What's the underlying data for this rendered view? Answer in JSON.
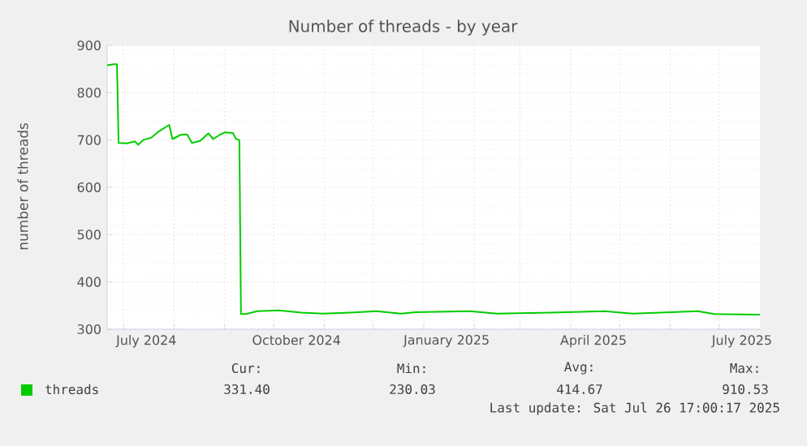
{
  "chart_data": {
    "type": "line",
    "title": "Number of threads - by year",
    "ylabel": "number of threads",
    "xlim": [
      "2024-06-21",
      "2025-07-26"
    ],
    "ylim": [
      300,
      900
    ],
    "yticks": [
      300,
      400,
      500,
      600,
      700,
      800,
      900
    ],
    "xticks": [
      {
        "value": "2024-07-01",
        "label": null
      },
      {
        "value": "2024-08-01",
        "label": null
      },
      {
        "value": "2024-09-01",
        "label": null
      },
      {
        "value": "2024-10-01",
        "label": null
      },
      {
        "value": "2024-11-01",
        "label": null
      },
      {
        "value": "2024-12-01",
        "label": null
      },
      {
        "value": "2025-01-01",
        "label": null
      },
      {
        "value": "2025-02-01",
        "label": null
      },
      {
        "value": "2025-03-01",
        "label": null
      },
      {
        "value": "2025-04-01",
        "label": null
      },
      {
        "value": "2025-05-01",
        "label": null
      },
      {
        "value": "2025-06-01",
        "label": null
      },
      {
        "value": "2025-07-01",
        "label": null
      },
      {
        "value": "2024-07-15",
        "label": "July 2024"
      },
      {
        "value": "2024-10-15",
        "label": "October 2024"
      },
      {
        "value": "2025-01-15",
        "label": "January 2025"
      },
      {
        "value": "2025-04-15",
        "label": "April 2025"
      },
      {
        "value": "2025-07-15",
        "label": "July 2025"
      }
    ],
    "grid": true,
    "legend": "bottom",
    "marker": "none",
    "line_style": "solid",
    "series": [
      {
        "name": "threads",
        "color": "#00cc00",
        "x": [
          "2024-06-21",
          "2024-06-25",
          "2024-06-27",
          "2024-06-28",
          "2024-07-03",
          "2024-07-08",
          "2024-07-10",
          "2024-07-13",
          "2024-07-18",
          "2024-07-23",
          "2024-07-29",
          "2024-07-31",
          "2024-08-05",
          "2024-08-09",
          "2024-08-12",
          "2024-08-17",
          "2024-08-22",
          "2024-08-25",
          "2024-08-29",
          "2024-09-01",
          "2024-09-06",
          "2024-09-08",
          "2024-09-10",
          "2024-09-11",
          "2024-09-14",
          "2024-09-21",
          "2024-10-04",
          "2024-10-18",
          "2024-10-31",
          "2024-11-17",
          "2024-12-03",
          "2024-12-18",
          "2024-12-27",
          "2025-01-29",
          "2025-02-15",
          "2025-03-20",
          "2025-04-22",
          "2025-05-09",
          "2025-05-26",
          "2025-06-18",
          "2025-06-28",
          "2025-07-24",
          "2025-07-26"
        ],
        "values": [
          858,
          860,
          860,
          694,
          693,
          697,
          690,
          700,
          705,
          719,
          732,
          702,
          711,
          712,
          694,
          698,
          714,
          702,
          711,
          716,
          715,
          702,
          700,
          332,
          332,
          338,
          340,
          335,
          333,
          335,
          338,
          333,
          336,
          338,
          333,
          335,
          338,
          333,
          335,
          338,
          332,
          331,
          331
        ]
      }
    ],
    "annotations": [
      "Cur:",
      "Min:",
      "Avg:",
      "Max:",
      "331.40",
      "230.03",
      "414.67",
      "910.53",
      "Last update: Sat Jul 26 17:00:17 2025"
    ]
  }
}
